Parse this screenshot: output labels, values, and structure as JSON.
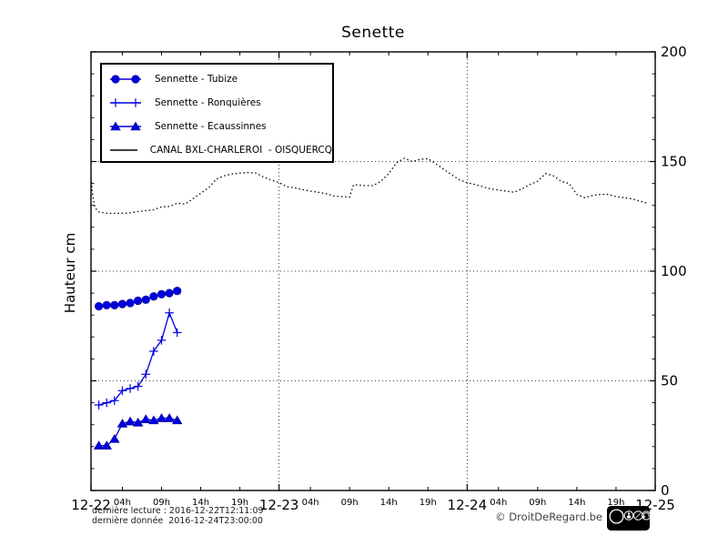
{
  "title": "Senette",
  "y_axis": {
    "label": "Hauteur cm"
  },
  "footer": {
    "last_reading": "dernière lecture : 2016-12-22T12:11:09",
    "last_data": "dernière donnée  2016-12-24T23:00:00",
    "copyright": "© DroitDeRegard.be",
    "cc": {
      "logo": "cc",
      "by": "BY",
      "nc": "NC",
      "sa": "SA"
    }
  },
  "colors": {
    "series_blue": "#0000dd",
    "series_black": "#000000",
    "grid": "#000000"
  },
  "chart_data": {
    "type": "line",
    "title": "Senette",
    "ylabel": "Hauteur cm",
    "ylim": [
      0,
      200
    ],
    "yticks": [
      0,
      50,
      100,
      150,
      200
    ],
    "y_minor_step": 10,
    "x_unit": "hours since 2016-12-22 00:00",
    "xlim_hours": [
      0,
      72
    ],
    "x_day_ticks": [
      {
        "hour": 0,
        "label": "12-22"
      },
      {
        "hour": 24,
        "label": "12-23"
      },
      {
        "hour": 48,
        "label": "12-24"
      },
      {
        "hour": 72,
        "label": "12-25"
      }
    ],
    "x_hour_ticks": [
      {
        "hour": 4,
        "label": "04h"
      },
      {
        "hour": 9,
        "label": "09h"
      },
      {
        "hour": 14,
        "label": "14h"
      },
      {
        "hour": 19,
        "label": "19h"
      },
      {
        "hour": 28,
        "label": "04h"
      },
      {
        "hour": 33,
        "label": "09h"
      },
      {
        "hour": 38,
        "label": "14h"
      },
      {
        "hour": 43,
        "label": "19h"
      },
      {
        "hour": 52,
        "label": "04h"
      },
      {
        "hour": 57,
        "label": "09h"
      },
      {
        "hour": 62,
        "label": "14h"
      },
      {
        "hour": 67,
        "label": "19h"
      }
    ],
    "grid": {
      "y_values": [
        50,
        100,
        150
      ],
      "x_hours": [
        24,
        48
      ],
      "style": "dotted"
    },
    "legend_position": "upper-left",
    "series": [
      {
        "id": "tubize",
        "name": "Sennette - Tubize",
        "color": "#0000dd",
        "marker": "circle",
        "linestyle": "solid",
        "x": [
          1,
          2,
          3,
          4,
          5,
          6,
          7,
          8,
          9,
          10,
          11
        ],
        "values": [
          84,
          84.5,
          84.5,
          85,
          85.5,
          86.5,
          87,
          88.5,
          89.5,
          90,
          91
        ]
      },
      {
        "id": "ronquieres",
        "name": "Sennette - Ronquières",
        "color": "#0000dd",
        "marker": "plus",
        "linestyle": "solid",
        "x": [
          1,
          2,
          3,
          4,
          5,
          6,
          7,
          8,
          9,
          10,
          11
        ],
        "values": [
          39,
          40,
          41,
          45.5,
          46.5,
          47.5,
          53,
          63.5,
          68.5,
          81,
          72
        ]
      },
      {
        "id": "ecaussinnes",
        "name": "Sennette - Ecaussinnes",
        "color": "#0000dd",
        "marker": "triangle",
        "linestyle": "solid",
        "x": [
          1,
          2,
          3,
          4,
          5,
          6,
          7,
          8,
          9,
          10,
          11
        ],
        "values": [
          20.5,
          20.5,
          23.5,
          30.5,
          31.5,
          31,
          32.5,
          32,
          33,
          33,
          32
        ]
      },
      {
        "id": "canal",
        "name": "CANAL BXL-CHARLEROI  - OISQUERCQ",
        "color": "#000000",
        "marker": "none",
        "linestyle": "dotted",
        "points": [
          [
            0,
            142.5
          ],
          [
            0.2,
            135
          ],
          [
            0.5,
            129
          ],
          [
            1,
            127
          ],
          [
            2,
            126.4
          ],
          [
            3,
            126.4
          ],
          [
            4,
            126.4
          ],
          [
            5,
            126.6
          ],
          [
            6,
            127.2
          ],
          [
            7,
            127.6
          ],
          [
            8,
            128
          ],
          [
            9,
            129.3
          ],
          [
            10,
            129.5
          ],
          [
            11,
            131
          ],
          [
            12,
            130.6
          ],
          [
            13,
            133
          ],
          [
            14,
            135.5
          ],
          [
            15,
            138
          ],
          [
            16,
            142
          ],
          [
            17,
            143.5
          ],
          [
            18,
            144.3
          ],
          [
            19,
            144.7
          ],
          [
            20,
            145
          ],
          [
            21,
            144.8
          ],
          [
            22,
            143
          ],
          [
            23,
            141.5
          ],
          [
            24,
            140.4
          ],
          [
            25,
            138.5
          ],
          [
            26,
            138
          ],
          [
            27,
            137.2
          ],
          [
            28,
            136.5
          ],
          [
            29,
            136
          ],
          [
            30,
            135.3
          ],
          [
            31,
            134.3
          ],
          [
            32,
            134
          ],
          [
            33,
            133.8
          ],
          [
            33.5,
            139.3
          ],
          [
            34,
            139.3
          ],
          [
            35,
            139
          ],
          [
            36,
            139
          ],
          [
            37,
            141
          ],
          [
            38,
            144.5
          ],
          [
            39,
            149.5
          ],
          [
            40,
            151.5
          ],
          [
            41,
            150
          ],
          [
            42,
            151
          ],
          [
            43,
            151.3
          ],
          [
            44,
            149
          ],
          [
            45,
            146.5
          ],
          [
            46,
            144
          ],
          [
            47,
            141.7
          ],
          [
            48,
            140.4
          ],
          [
            49,
            139.5
          ],
          [
            50,
            138.5
          ],
          [
            51,
            137.5
          ],
          [
            52,
            137
          ],
          [
            53,
            136.5
          ],
          [
            54,
            136
          ],
          [
            55,
            137.5
          ],
          [
            56,
            139.5
          ],
          [
            57,
            141
          ],
          [
            58,
            144.5
          ],
          [
            59,
            143.5
          ],
          [
            60,
            141
          ],
          [
            61,
            140
          ],
          [
            62,
            135
          ],
          [
            63,
            133.5
          ],
          [
            64,
            134.5
          ],
          [
            65,
            135
          ],
          [
            66,
            135
          ],
          [
            67,
            134
          ],
          [
            68,
            133.5
          ],
          [
            69,
            133
          ],
          [
            70,
            132
          ],
          [
            71,
            131
          ]
        ]
      }
    ]
  }
}
